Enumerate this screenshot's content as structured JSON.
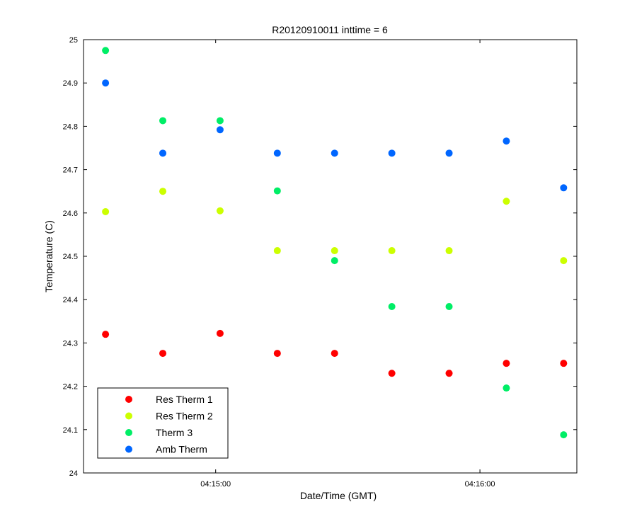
{
  "chart_data": {
    "type": "scatter",
    "title": "R20120910011 inttime = 6",
    "xlabel": "Date/Time (GMT)",
    "ylabel": "Temperature (C)",
    "ylim": [
      24,
      25
    ],
    "yticks": [
      "24",
      "24.1",
      "24.2",
      "24.3",
      "24.4",
      "24.5",
      "24.6",
      "24.7",
      "24.8",
      "24.9",
      "25"
    ],
    "xlim": [
      "04:14:30",
      "04:16:22"
    ],
    "xticks": [
      "04:15:00",
      "04:16:00"
    ],
    "legend_position": "bottom-left",
    "grid": false,
    "x": [
      "04:14:35",
      "04:14:48",
      "04:15:01",
      "04:15:14",
      "04:15:27",
      "04:15:40",
      "04:15:53",
      "04:16:06",
      "04:16:19"
    ],
    "series": [
      {
        "name": "Res Therm 1",
        "color": "#ff0000",
        "values": [
          24.32,
          24.276,
          24.322,
          24.276,
          24.276,
          24.23,
          24.23,
          24.253,
          24.253
        ]
      },
      {
        "name": "Res Therm 2",
        "color": "#ccff00",
        "values": [
          24.603,
          24.65,
          24.605,
          24.513,
          24.513,
          24.513,
          24.513,
          24.627,
          24.49
        ]
      },
      {
        "name": "Therm 3",
        "color": "#00ee66",
        "values": [
          24.975,
          24.813,
          24.813,
          24.651,
          24.49,
          24.384,
          24.384,
          24.196,
          24.088
        ]
      },
      {
        "name": "Amb Therm",
        "color": "#0066ff",
        "values": [
          24.9,
          24.738,
          24.792,
          24.738,
          24.738,
          24.738,
          24.738,
          24.766,
          24.658
        ]
      }
    ]
  }
}
